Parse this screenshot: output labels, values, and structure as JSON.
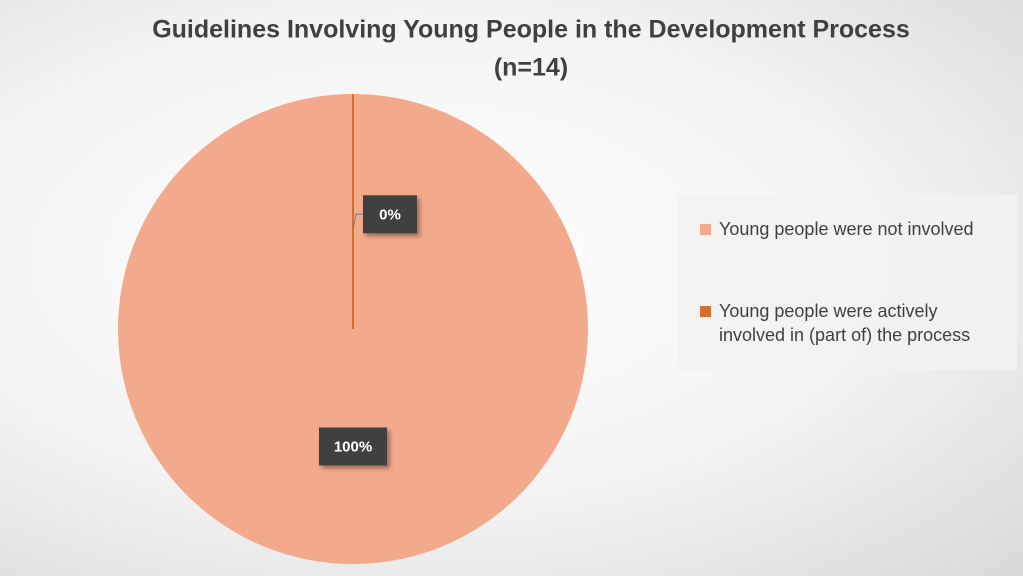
{
  "chart_data": {
    "type": "pie",
    "title": "Guidelines Involving Young People in the Development Process",
    "subtitle": "(n=14)",
    "categories": [
      "Young people were not involved",
      "Young people were actively involved in (part of) the process"
    ],
    "values": [
      100,
      0
    ],
    "value_labels": [
      "100%",
      "0%"
    ],
    "colors": [
      "#f3a98b",
      "#d3702c"
    ],
    "legend": "right"
  }
}
